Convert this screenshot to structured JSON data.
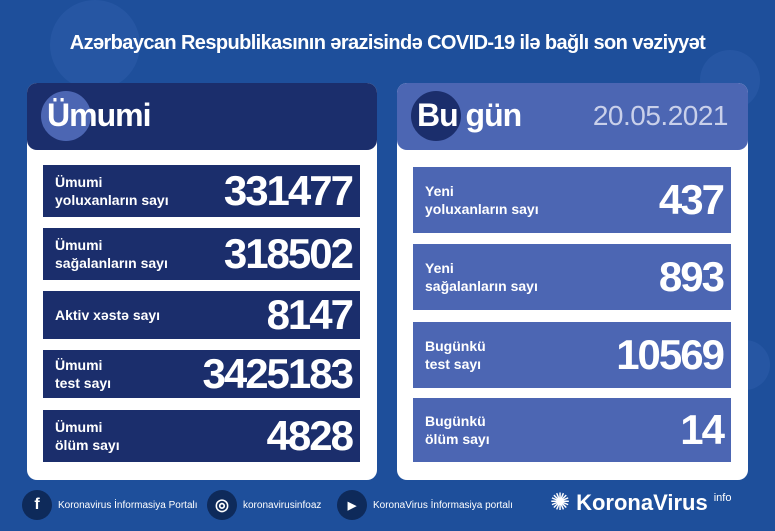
{
  "title": "Azərbaycan Respublikasının ərazisində COVID-19 ilə bağlı son vəziyyət",
  "left": {
    "heading": "Ümumi",
    "rows": [
      {
        "label": "Ümumi\nyoluxanların sayı",
        "value": "331477"
      },
      {
        "label": "Ümumi\nsağalanların sayı",
        "value": "318502"
      },
      {
        "label": "Aktiv xəstə sayı",
        "value": "8147"
      },
      {
        "label": "Ümumi\ntest sayı",
        "value": "3425183"
      },
      {
        "label": "Ümumi\nölüm sayı",
        "value": "4828"
      }
    ]
  },
  "right": {
    "heading": "Bu gün",
    "date": "20.05.2021",
    "rows": [
      {
        "label": "Yeni\nyoluxanların sayı",
        "value": "437"
      },
      {
        "label": "Yeni\nsağalanların sayı",
        "value": "893"
      },
      {
        "label": "Bugünkü\ntest sayı",
        "value": "10569"
      },
      {
        "label": "Bugünkü\nölüm sayı",
        "value": "14"
      }
    ]
  },
  "footer": {
    "facebook": "Koronavirus İnformasiya Portalı",
    "instagram": "koronavirusinfoaz",
    "youtube": "KoronaVirus İnformasiya portalı",
    "logo": "KoronaVirus",
    "logo_sup": "info"
  },
  "colors": {
    "background": "#1e4f9b",
    "left_dark": "#1b2e6c",
    "right_light": "#4c66b3"
  }
}
